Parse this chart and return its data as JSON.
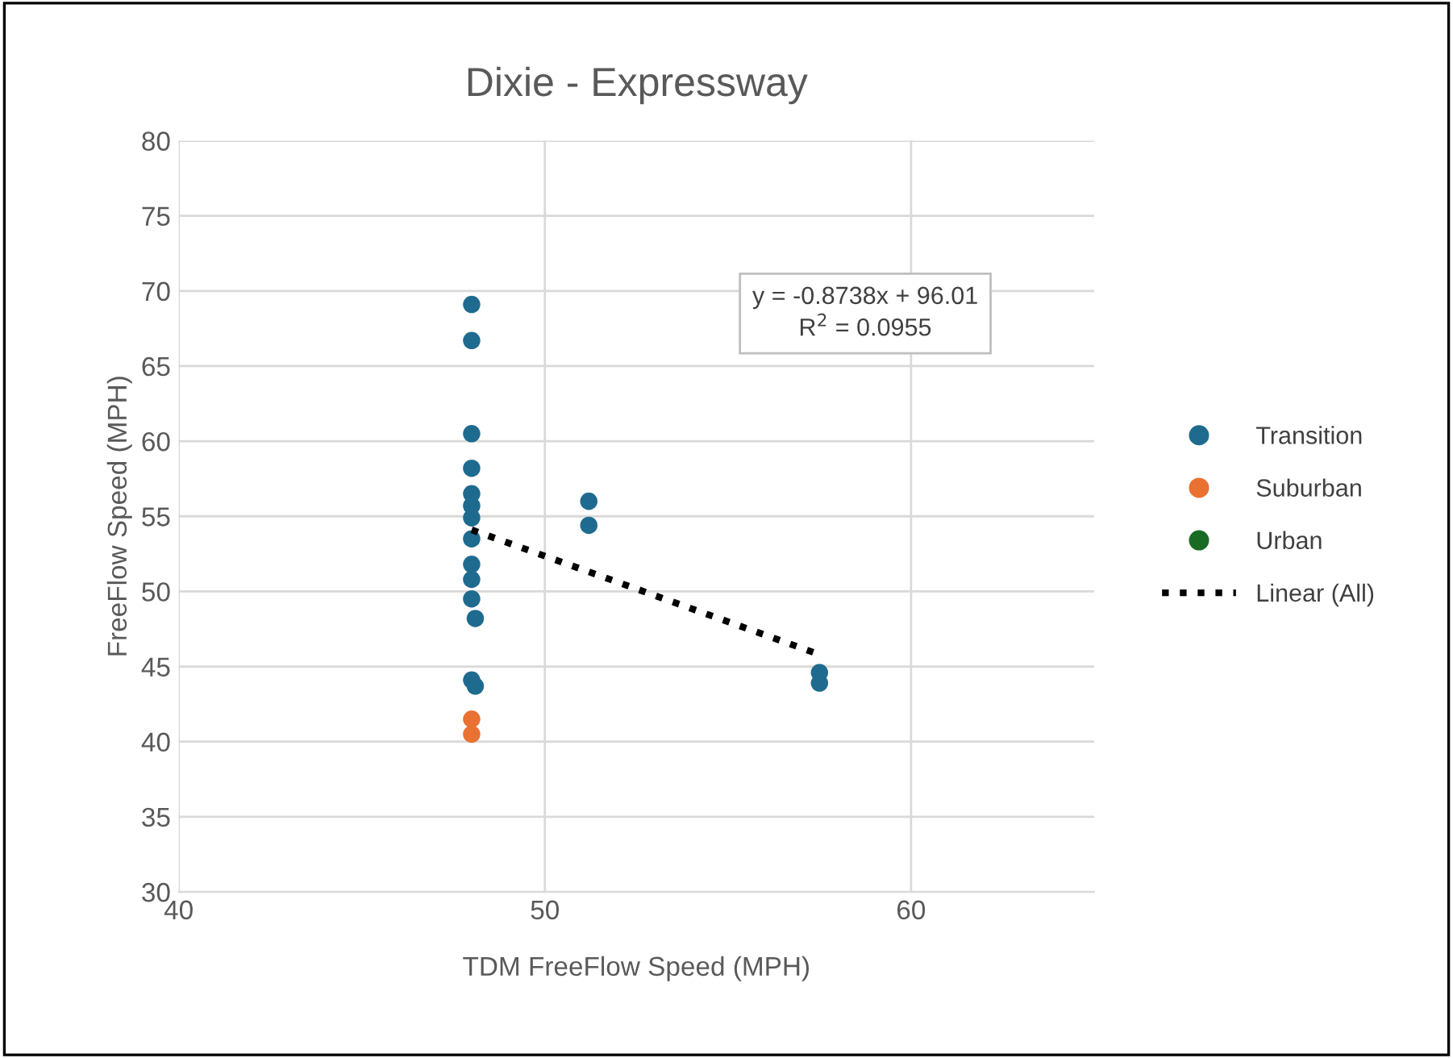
{
  "chart_data": {
    "type": "scatter",
    "title": "Dixie - Expressway",
    "xlabel": "TDM FreeFlow Speed (MPH)",
    "ylabel": "FreeFlow Speed (MPH)",
    "xlim": [
      40,
      65
    ],
    "xticks": [
      40,
      50,
      60
    ],
    "ylim": [
      30,
      80
    ],
    "yticks": [
      30,
      35,
      40,
      45,
      50,
      55,
      60,
      65,
      70,
      75,
      80
    ],
    "grid": true,
    "legend": "right",
    "marker": "circle",
    "annotations": [
      "y = -0.8738x + 96.01",
      "R$^{2}$ = 0.0955"
    ],
    "series": [
      {
        "name": "Transition",
        "color": "#1f6b8f",
        "x": [
          48,
          48,
          48,
          48,
          48,
          48,
          48,
          48,
          48,
          48,
          48,
          48.1,
          48,
          48.1,
          51.2,
          51.2,
          57.5,
          57.5
        ],
        "values": [
          69.1,
          66.7,
          60.5,
          58.2,
          56.5,
          55.7,
          54.9,
          53.5,
          51.8,
          50.8,
          49.5,
          48.2,
          44.1,
          43.7,
          56.0,
          54.4,
          44.6,
          43.9
        ]
      },
      {
        "name": "Suburban",
        "color": "#e97132",
        "x": [
          48,
          48
        ],
        "values": [
          41.5,
          40.5
        ]
      },
      {
        "name": "Urban",
        "color": "#196b24"
      },
      {
        "name": "Linear (All)",
        "type": "line",
        "line_style": "dotted",
        "marker": "none",
        "color": "#000000",
        "x": [
          48,
          57.5
        ],
        "values": [
          54.1,
          45.8
        ]
      }
    ]
  }
}
